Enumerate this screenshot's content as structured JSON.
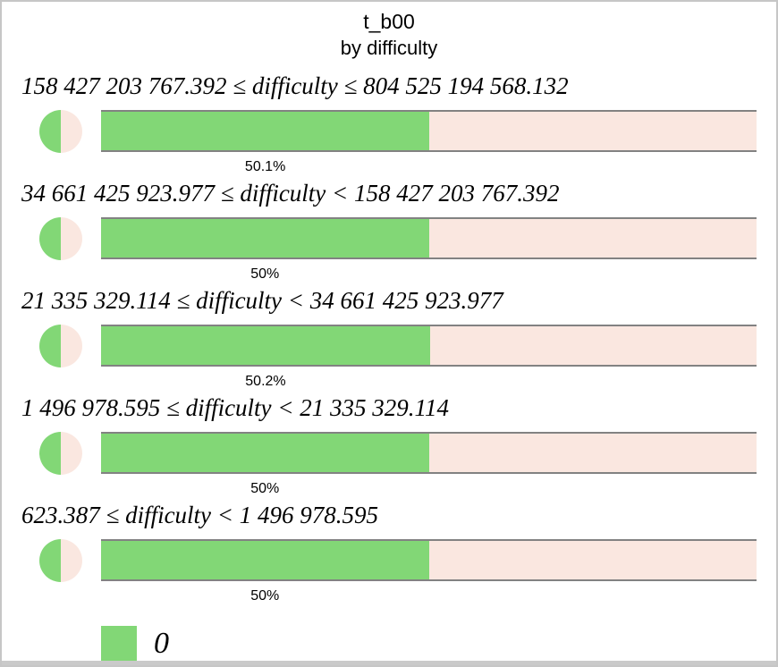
{
  "header": {
    "title": "t_b00",
    "subtitle": "by difficulty"
  },
  "legend": {
    "label": "0",
    "swatch_color": "#82d776"
  },
  "colors": {
    "green_segment": "#82d776",
    "pink_segment": "#fae7e0",
    "pie_green": "#82d776",
    "pie_pink": "#fae7e0",
    "bar_border": "#828282",
    "frame_border": "#c6c6c6",
    "bottom_strip": "#cacaca",
    "text": "#000000"
  },
  "chart_data": {
    "type": "bar",
    "subtype": "horizontal-stacked-percentage",
    "title": "t_b00",
    "subtitle": "by difficulty",
    "legend_entries": [
      {
        "label": "0",
        "color": "#82d776"
      }
    ],
    "legend_position": "bottom-left",
    "grid": false,
    "categories": [
      "158 427 203 767.392 ≤ difficulty ≤ 804 525 194 568.132",
      "34 661 425 923.977 ≤ difficulty < 158 427 203 767.392",
      "21 335 329.114 ≤ difficulty < 34 661 425 923.977",
      "1 496 978.595 ≤ difficulty < 21 335 329.114",
      "623.387 ≤ difficulty < 1 496 978.595"
    ],
    "series": [
      {
        "name": "green",
        "color": "#82d776",
        "values": [
          50.1,
          50,
          50.2,
          50,
          50
        ]
      },
      {
        "name": "pink",
        "color": "#fae7e0",
        "values": [
          49.9,
          50,
          49.8,
          50,
          50
        ]
      }
    ],
    "rows": [
      {
        "range_label": "158 427 203 767.392 ≤ difficulty ≤ 804 525 194 568.132",
        "green_percent": 50.1,
        "pink_percent": 49.9,
        "percent_label": "50.1%"
      },
      {
        "range_label": "34 661 425 923.977 ≤ difficulty < 158 427 203 767.392",
        "green_percent": 50,
        "pink_percent": 50,
        "percent_label": "50%"
      },
      {
        "range_label": "21 335 329.114 ≤ difficulty < 34 661 425 923.977",
        "green_percent": 50.2,
        "pink_percent": 49.8,
        "percent_label": "50.2%"
      },
      {
        "range_label": "1 496 978.595 ≤ difficulty < 21 335 329.114",
        "green_percent": 50,
        "pink_percent": 50,
        "percent_label": "50%"
      },
      {
        "range_label": "623.387 ≤ difficulty < 1 496 978.595",
        "green_percent": 50,
        "pink_percent": 50,
        "percent_label": "50%"
      }
    ]
  }
}
